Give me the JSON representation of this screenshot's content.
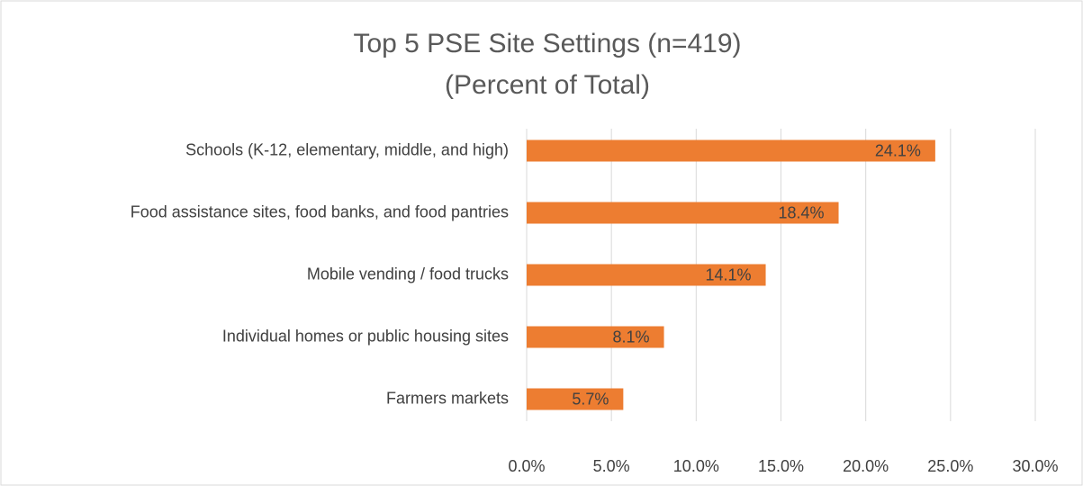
{
  "chart_data": {
    "type": "barh",
    "title": "Top 5 PSE Site Settings (n=419)",
    "subtitle": "(Percent of Total)",
    "categories": [
      "Schools (K-12, elementary, middle, and high)",
      "Food assistance sites, food banks, and food pantries",
      "Mobile vending / food trucks",
      "Individual homes or public housing sites",
      "Farmers markets"
    ],
    "values": [
      24.1,
      18.4,
      14.1,
      8.1,
      5.7
    ],
    "value_labels": [
      "24.1%",
      "18.4%",
      "14.1%",
      "8.1%",
      "5.7%"
    ],
    "color": "#ed7d31",
    "xlim": [
      0,
      30
    ],
    "xticks": [
      {
        "value": 0,
        "label": "0.0%"
      },
      {
        "value": 5,
        "label": "5.0%"
      },
      {
        "value": 10,
        "label": "10.0%"
      },
      {
        "value": 15,
        "label": "15.0%"
      },
      {
        "value": 20,
        "label": "20.0%"
      },
      {
        "value": 25,
        "label": "25.0%"
      },
      {
        "value": 30,
        "label": "30.0%"
      }
    ],
    "grid": true
  }
}
